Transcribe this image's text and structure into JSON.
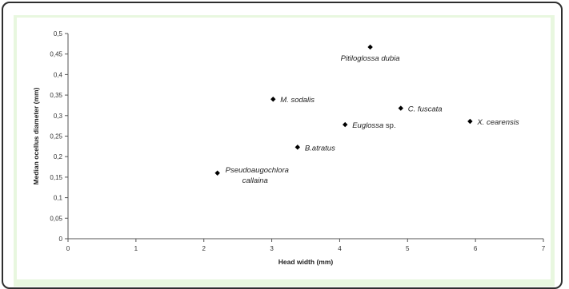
{
  "chart_data": {
    "type": "scatter",
    "xlabel": "Head width (mm)",
    "ylabel": "Median ocellus diameter (mm)",
    "xlim": [
      0,
      7
    ],
    "ylim": [
      0,
      0.5
    ],
    "x_ticks": [
      "0",
      "1",
      "2",
      "3",
      "4",
      "5",
      "6",
      "7"
    ],
    "y_ticks": [
      "0",
      "0,05",
      "0,1",
      "0,15",
      "0,2",
      "0,25",
      "0,3",
      "0,35",
      "0,4",
      "0,45",
      "0,5"
    ],
    "grid": false,
    "legend": "none",
    "marker": "diamond",
    "marker_color": "#000000",
    "points": [
      {
        "label": "Pseudoaugochlora callaina",
        "label_lines": [
          {
            "text": "Pseudoaugochlora",
            "italic": true
          },
          {
            "text": "callaina",
            "italic": true
          }
        ],
        "x": 2.2,
        "y": 0.16,
        "label_pos": "right-two-line"
      },
      {
        "label": "B.atratus",
        "label_lines": [
          {
            "text": "B.atratus",
            "italic": true
          }
        ],
        "x": 3.38,
        "y": 0.223,
        "label_pos": "right"
      },
      {
        "label": "M. sodalis",
        "label_lines": [
          {
            "text": "M. sodalis",
            "italic": true
          }
        ],
        "x": 3.02,
        "y": 0.34,
        "label_pos": "right"
      },
      {
        "label": "Euglossa sp.",
        "label_lines": [
          {
            "text": "Euglossa",
            "italic": true,
            "suffix": " sp."
          }
        ],
        "x": 4.08,
        "y": 0.278,
        "label_pos": "right"
      },
      {
        "label": "C. fuscata",
        "label_lines": [
          {
            "text": "C. fuscata",
            "italic": true
          }
        ],
        "x": 4.9,
        "y": 0.318,
        "label_pos": "right"
      },
      {
        "label": "Pitiloglossa dubia",
        "label_lines": [
          {
            "text": "Pitiloglossa dubia",
            "italic": true
          }
        ],
        "x": 4.45,
        "y": 0.467,
        "label_pos": "below"
      },
      {
        "label": "X. cearensis",
        "label_lines": [
          {
            "text": "X. cearensis",
            "italic": true
          }
        ],
        "x": 5.92,
        "y": 0.286,
        "label_pos": "right"
      }
    ]
  },
  "colors": {
    "outer_border": "#2e2e2e",
    "panel_background": "#e8f7df",
    "plot_background": "#ffffff",
    "axis": "#555555"
  }
}
